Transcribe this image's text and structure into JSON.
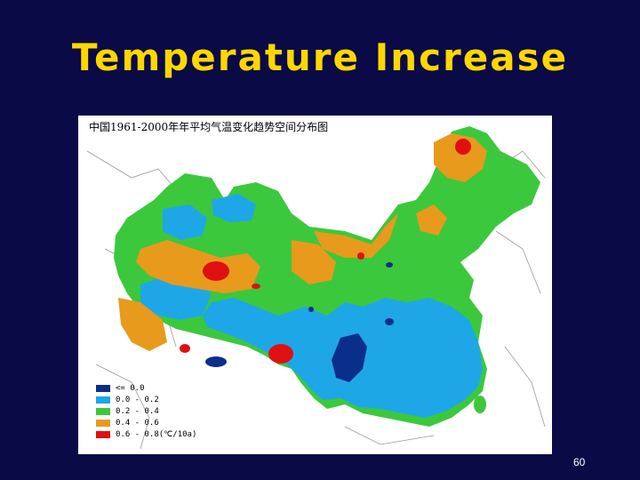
{
  "slide": {
    "title": "Temperature Increase",
    "page_number": "60"
  },
  "map": {
    "caption": "中国1961-2000年年平均气温变化趋势空间分布图",
    "legend": [
      {
        "label": "<= 0.0",
        "color": "#0a2f8a"
      },
      {
        "label": "0.0 - 0.2",
        "color": "#1ea7e6"
      },
      {
        "label": "0.2 - 0.4",
        "color": "#3cc83c"
      },
      {
        "label": "0.4 - 0.6",
        "color": "#e89a1c"
      },
      {
        "label": "0.6 - 0.8(℃/10a)",
        "color": "#e01010"
      }
    ]
  }
}
